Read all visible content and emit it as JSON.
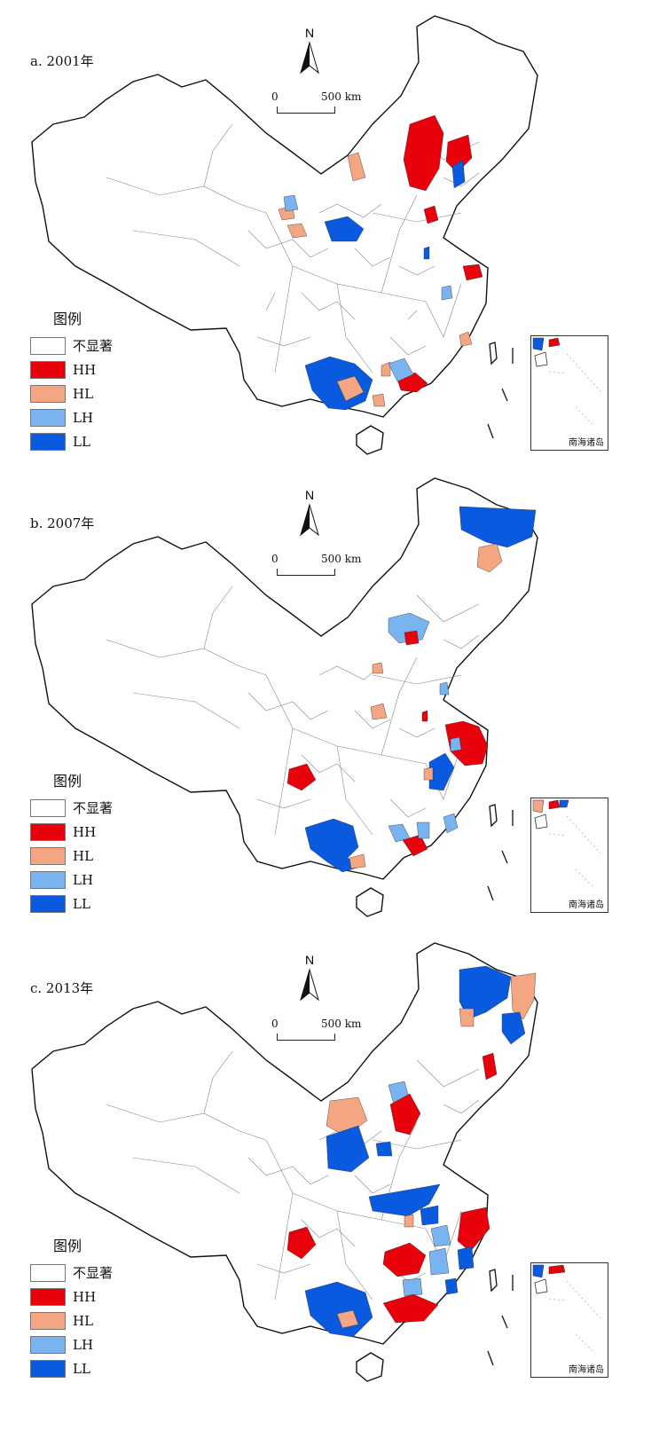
{
  "legend_title": "图例",
  "legend_items": [
    {
      "label": "不显著",
      "color": "#ffffff"
    },
    {
      "label": "HH",
      "color": "#e8000b"
    },
    {
      "label": "HL",
      "color": "#f4a582"
    },
    {
      "label": "LH",
      "color": "#7ab4f0"
    },
    {
      "label": "LL",
      "color": "#0a5ae0"
    }
  ],
  "legend_hh_label_panels_ab": "HH",
  "scale": {
    "zero": "0",
    "distance": "500 km"
  },
  "north_label": "N",
  "inset_label": "南海诸岛",
  "panels": [
    {
      "label": "a. 2001年"
    },
    {
      "label": "b. 2007年"
    },
    {
      "label": "c. 2013年"
    }
  ]
}
